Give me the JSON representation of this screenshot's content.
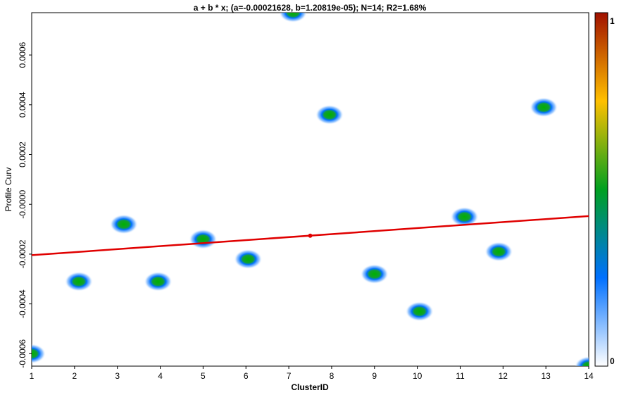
{
  "chart_data": {
    "type": "scatter",
    "title": "a + b * x; (a=-0.00021628, b=1.20819e-05); N=14; R2=1.68%",
    "xlabel": "ClusterID",
    "ylabel": "Profile Curv",
    "xlim": [
      1,
      14
    ],
    "ylim": [
      -0.00065,
      0.00077
    ],
    "x_ticks": [
      "1",
      "2",
      "3",
      "4",
      "5",
      "6",
      "7",
      "8",
      "9",
      "10",
      "11",
      "12",
      "13",
      "14"
    ],
    "y_ticks": [
      {
        "value": -0.0006,
        "label": "-0.0006"
      },
      {
        "value": -0.0004,
        "label": "-0.0004"
      },
      {
        "value": -0.0002,
        "label": "-0.0002"
      },
      {
        "value": 0.0,
        "label": "-0.0000"
      },
      {
        "value": 0.0002,
        "label": "0.0002"
      },
      {
        "value": 0.0004,
        "label": "0.0004"
      },
      {
        "value": 0.0006,
        "label": "0.0006"
      }
    ],
    "points": [
      {
        "x": 1.0,
        "y": -0.0006
      },
      {
        "x": 2.1,
        "y": -0.00031
      },
      {
        "x": 3.15,
        "y": -8e-05
      },
      {
        "x": 3.95,
        "y": -0.00031
      },
      {
        "x": 5.0,
        "y": -0.00014
      },
      {
        "x": 6.05,
        "y": -0.00022
      },
      {
        "x": 7.1,
        "y": 0.00077
      },
      {
        "x": 7.95,
        "y": 0.00036
      },
      {
        "x": 9.0,
        "y": -0.00028
      },
      {
        "x": 10.05,
        "y": -0.00043
      },
      {
        "x": 11.1,
        "y": -5e-05
      },
      {
        "x": 11.9,
        "y": -0.00019
      },
      {
        "x": 12.95,
        "y": 0.00039
      },
      {
        "x": 14.0,
        "y": -0.00065
      }
    ],
    "fit": {
      "a": -0.00021628,
      "b": 1.20819e-05,
      "color": "#e00000",
      "x_range": [
        1,
        14
      ],
      "mean_point": {
        "x": 7.5,
        "y": -0.000126
      }
    },
    "colorbar": {
      "min_label": "0",
      "max_label": "1",
      "colors": [
        "#ffffff",
        "#0070ff",
        "#00a020",
        "#ffc000",
        "#a01000"
      ]
    },
    "grid": false
  }
}
